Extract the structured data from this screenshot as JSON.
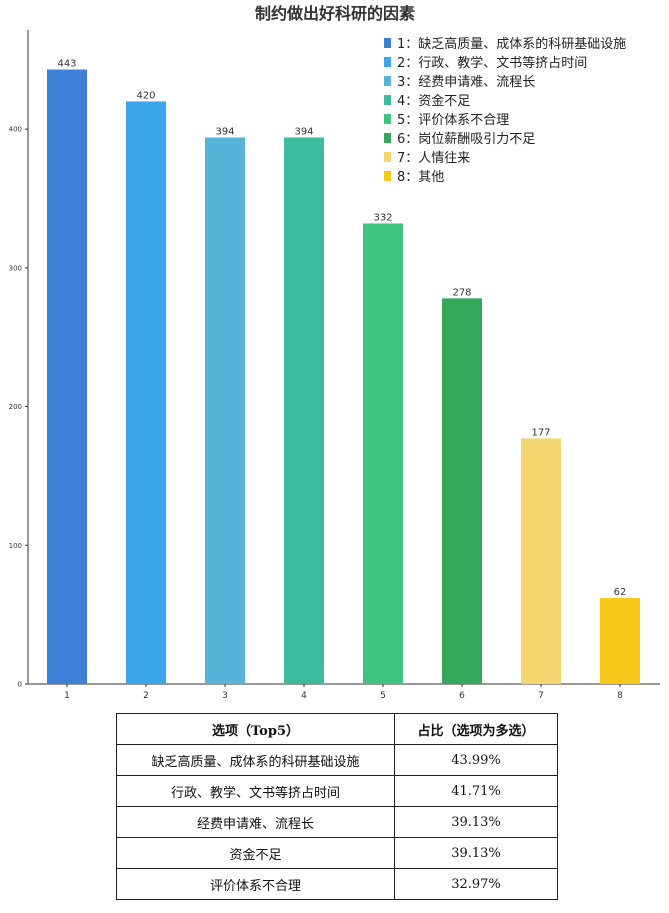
{
  "chart_data": {
    "type": "bar",
    "title": "制约做出好科研的因素",
    "categories": [
      "1",
      "2",
      "3",
      "4",
      "5",
      "6",
      "7",
      "8"
    ],
    "values": [
      443,
      420,
      394,
      394,
      332,
      278,
      177,
      62
    ],
    "colors": [
      "#3f80d7",
      "#3aa7ec",
      "#58b3d8",
      "#3dbb9e",
      "#3ec47f",
      "#35a85d",
      "#f3d56f",
      "#f6c81b"
    ],
    "yticks": [
      0,
      100,
      200,
      300,
      400
    ],
    "ylim": [
      0,
      465
    ],
    "xlabel": "",
    "ylabel": "",
    "grid": false,
    "legend_position": "top-right",
    "legend": [
      "1：缺乏高质量、成体系的科研基础设施",
      "2：行政、教学、文书等挤占时间",
      "3：经费申请难、流程长",
      "4：资金不足",
      "5：评价体系不合理",
      "6：岗位薪酬吸引力不足",
      "7：人情往来",
      "8：其他"
    ]
  },
  "table": {
    "headers": [
      "选项（Top5）",
      "占比（选项为多选）"
    ],
    "rows": [
      [
        "缺乏高质量、成体系的科研基础设施",
        "43.99%"
      ],
      [
        "行政、教学、文书等挤占时间",
        "41.71%"
      ],
      [
        "经费申请难、流程长",
        "39.13%"
      ],
      [
        "资金不足",
        "39.13%"
      ],
      [
        "评价体系不合理",
        "32.97%"
      ]
    ]
  }
}
